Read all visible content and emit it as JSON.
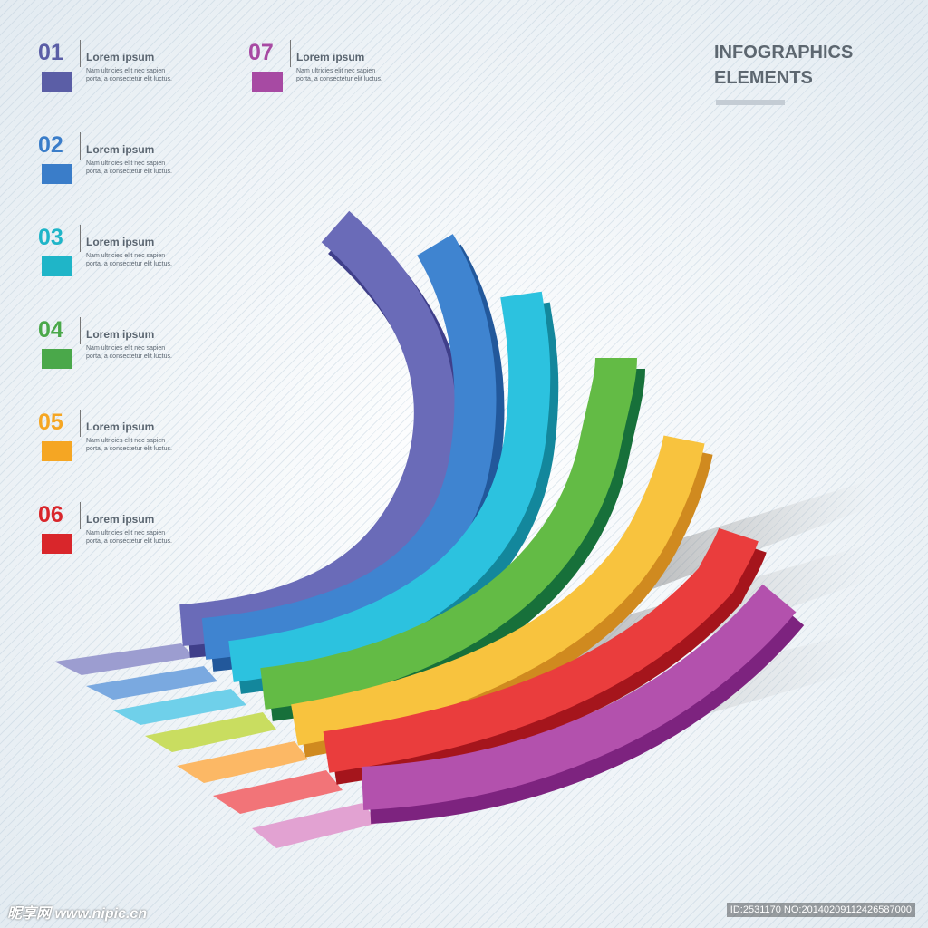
{
  "header": {
    "title_lines": [
      "INFOGRAPHICS",
      "ELEMENTS"
    ]
  },
  "items": [
    {
      "number": "01",
      "heading": "Lorem ipsum",
      "body": [
        "Nam ultricies elit nec sapien",
        "porta, a consectetur elit luctus."
      ],
      "color": "#5b5ea6"
    },
    {
      "number": "02",
      "heading": "Lorem ipsum",
      "body": [
        "Nam ultricies elit nec sapien",
        "porta, a consectetur elit luctus."
      ],
      "color": "#3a7dc9"
    },
    {
      "number": "03",
      "heading": "Lorem ipsum",
      "body": [
        "Nam ultricies elit nec sapien",
        "porta, a consectetur elit luctus."
      ],
      "color": "#1fb5c8"
    },
    {
      "number": "04",
      "heading": "Lorem ipsum",
      "body": [
        "Nam ultricies elit nec sapien",
        "porta, a consectetur elit luctus."
      ],
      "color": "#4aa84a"
    },
    {
      "number": "05",
      "heading": "Lorem ipsum",
      "body": [
        "Nam ultricies elit nec sapien",
        "porta, a consectetur elit luctus."
      ],
      "color": "#f5a623"
    },
    {
      "number": "06",
      "heading": "Lorem ipsum",
      "body": [
        "Nam ultricies elit nec sapien",
        "porta, a consectetur elit luctus."
      ],
      "color": "#d9262b"
    },
    {
      "number": "07",
      "heading": "Lorem ipsum",
      "body": [
        "Nam ultricies elit nec sapien",
        "porta, a consectetur elit luctus."
      ],
      "color": "#a74aa3"
    }
  ],
  "watermark": {
    "site": "昵享网 www.nipic.cn",
    "id": "ID:2531170 NO:20140209112426587000"
  }
}
